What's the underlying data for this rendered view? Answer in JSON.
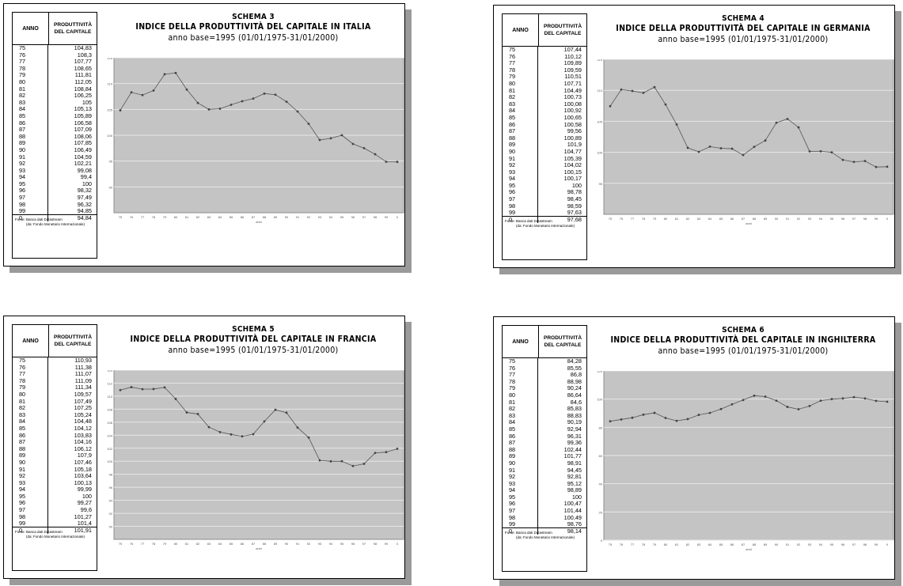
{
  "common": {
    "col_anno": "ANNO",
    "col_prod_1": "PRODUTTIVITÀ",
    "col_prod_2": "DEL CAPITALE",
    "source_1": "Fonte: Banca dati Datastream",
    "source_2": "(da: Fondo Monetario Internazionale)",
    "subtitle": "anno base=1995 (01/01/1975-31/01/2000)",
    "years": [
      "75",
      "76",
      "77",
      "78",
      "79",
      "80",
      "81",
      "82",
      "83",
      "84",
      "85",
      "86",
      "87",
      "88",
      "89",
      "90",
      "91",
      "92",
      "93",
      "94",
      "95",
      "96",
      "97",
      "98",
      "99",
      "0"
    ],
    "x_axis_label": "anni"
  },
  "panels": [
    {
      "schema": "SCHEMA 3",
      "title": "INDICE DELLA PRODUTTIVITÀ DEL CAPITALE IN ITALIA",
      "values": [
        "104,83",
        "108,3",
        "107,77",
        "108,65",
        "111,81",
        "112,05",
        "108,84",
        "106,25",
        "105",
        "105,13",
        "105,89",
        "106,58",
        "107,09",
        "108,06",
        "107,85",
        "106,49",
        "104,59",
        "102,21",
        "99,08",
        "99,4",
        "100",
        "98,32",
        "97,49",
        "96,32",
        "94,85",
        "94,84"
      ],
      "y_ticks": [
        "115",
        "110",
        "105",
        "100",
        "95",
        "90"
      ]
    },
    {
      "schema": "SCHEMA 4",
      "title": "INDICE DELLA PRODUTTIVITÀ DEL CAPITALE IN GERMANIA",
      "values": [
        "107,44",
        "110,12",
        "109,89",
        "109,59",
        "110,51",
        "107,71",
        "104,49",
        "100,73",
        "100,08",
        "100,92",
        "100,65",
        "100,58",
        "99,56",
        "100,89",
        "101,9",
        "104,77",
        "105,39",
        "104,02",
        "100,15",
        "100,17",
        "100",
        "98,78",
        "98,45",
        "98,59",
        "97,63",
        "97,68"
      ],
      "y_ticks": [
        "115",
        "110",
        "105",
        "100",
        "95"
      ]
    },
    {
      "schema": "SCHEMA 5",
      "title": "INDICE DELLA PRODUTTIVITÀ DEL CAPITALE IN FRANCIA",
      "values": [
        "110,93",
        "111,38",
        "111,07",
        "111,09",
        "111,34",
        "109,57",
        "107,49",
        "107,25",
        "105,24",
        "104,48",
        "104,12",
        "103,83",
        "104,16",
        "106,12",
        "107,9",
        "107,46",
        "105,18",
        "103,64",
        "100,13",
        "99,99",
        "100",
        "99,27",
        "99,6",
        "101,27",
        "101,4",
        "101,91"
      ],
      "y_ticks": [
        "114",
        "112",
        "110",
        "108",
        "106",
        "104",
        "102",
        "100",
        "98",
        "96",
        "94",
        "92",
        "90"
      ]
    },
    {
      "schema": "SCHEMA 6",
      "title": "INDICE DELLA PRODUTTIVITÀ DEL CAPITALE IN INGHILTERRA",
      "values": [
        "84,28",
        "85,55",
        "86,8",
        "88,98",
        "90,24",
        "86,64",
        "84,6",
        "85,83",
        "88,83",
        "90,19",
        "92,94",
        "96,31",
        "99,36",
        "102,44",
        "101,77",
        "98,91",
        "94,45",
        "92,81",
        "95,12",
        "98,89",
        "100",
        "100,47",
        "101,44",
        "100,49",
        "98,76",
        "98,14"
      ],
      "y_ticks": [
        "120",
        "100",
        "80",
        "60",
        "40",
        "20",
        "0"
      ]
    }
  ],
  "chart_data": [
    {
      "type": "line",
      "x": [
        "75",
        "76",
        "77",
        "78",
        "79",
        "80",
        "81",
        "82",
        "83",
        "84",
        "85",
        "86",
        "87",
        "88",
        "89",
        "90",
        "91",
        "92",
        "93",
        "94",
        "95",
        "96",
        "97",
        "98",
        "99",
        "0"
      ],
      "series": [
        {
          "values": [
            104.83,
            108.3,
            107.77,
            108.65,
            111.81,
            112.05,
            108.84,
            106.25,
            105,
            105.13,
            105.89,
            106.58,
            107.09,
            108.06,
            107.85,
            106.49,
            104.59,
            102.21,
            99.08,
            99.4,
            100,
            98.32,
            97.49,
            96.32,
            94.85,
            94.84
          ]
        }
      ],
      "title": "INDICE DELLA PRODUTTIVITÀ DEL CAPITALE IN ITALIA",
      "xlabel": "anni",
      "ylabel": "",
      "ylim": [
        85,
        115
      ]
    },
    {
      "type": "line",
      "x": [
        "75",
        "76",
        "77",
        "78",
        "79",
        "80",
        "81",
        "82",
        "83",
        "84",
        "85",
        "86",
        "87",
        "88",
        "89",
        "90",
        "91",
        "92",
        "93",
        "94",
        "95",
        "96",
        "97",
        "98",
        "99",
        "0"
      ],
      "series": [
        {
          "values": [
            107.44,
            110.12,
            109.89,
            109.59,
            110.51,
            107.71,
            104.49,
            100.73,
            100.08,
            100.92,
            100.65,
            100.58,
            99.56,
            100.89,
            101.9,
            104.77,
            105.39,
            104.02,
            100.15,
            100.17,
            100,
            98.78,
            98.45,
            98.59,
            97.63,
            97.68
          ]
        }
      ],
      "title": "INDICE DELLA PRODUTTIVITÀ DEL CAPITALE IN GERMANIA",
      "xlabel": "anni",
      "ylabel": "",
      "ylim": [
        90,
        115
      ]
    },
    {
      "type": "line",
      "x": [
        "75",
        "76",
        "77",
        "78",
        "79",
        "80",
        "81",
        "82",
        "83",
        "84",
        "85",
        "86",
        "87",
        "88",
        "89",
        "90",
        "91",
        "92",
        "93",
        "94",
        "95",
        "96",
        "97",
        "98",
        "99",
        "0"
      ],
      "series": [
        {
          "values": [
            110.93,
            111.38,
            111.07,
            111.09,
            111.34,
            109.57,
            107.49,
            107.25,
            105.24,
            104.48,
            104.12,
            103.83,
            104.16,
            106.12,
            107.9,
            107.46,
            105.18,
            103.64,
            100.13,
            99.99,
            100,
            99.27,
            99.6,
            101.27,
            101.4,
            101.91
          ]
        }
      ],
      "title": "INDICE DELLA PRODUTTIVITÀ DEL CAPITALE IN FRANCIA",
      "xlabel": "anni",
      "ylabel": "",
      "ylim": [
        88,
        114
      ]
    },
    {
      "type": "line",
      "x": [
        "75",
        "76",
        "77",
        "78",
        "79",
        "80",
        "81",
        "82",
        "83",
        "84",
        "85",
        "86",
        "87",
        "88",
        "89",
        "90",
        "91",
        "92",
        "93",
        "94",
        "95",
        "96",
        "97",
        "98",
        "99",
        "0"
      ],
      "series": [
        {
          "values": [
            84.28,
            85.55,
            86.8,
            88.98,
            90.24,
            86.64,
            84.6,
            85.83,
            88.83,
            90.19,
            92.94,
            96.31,
            99.36,
            102.44,
            101.77,
            98.91,
            94.45,
            92.81,
            95.12,
            98.89,
            100,
            100.47,
            101.44,
            100.49,
            98.76,
            98.14
          ]
        }
      ],
      "title": "INDICE DELLA PRODUTTIVITÀ DEL CAPITALE IN INGHILTERRA",
      "xlabel": "anni",
      "ylabel": "",
      "ylim": [
        0,
        120
      ]
    }
  ]
}
